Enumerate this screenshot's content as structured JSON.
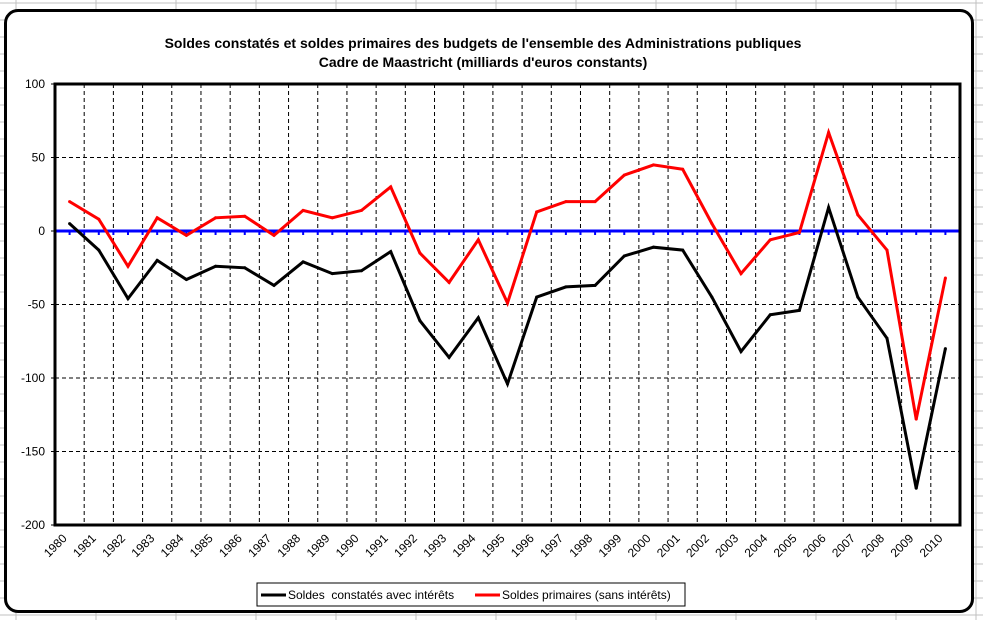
{
  "chart_data": {
    "type": "line",
    "title": "Soldes constatés et soldes primaires des budgets de l'ensemble des Administrations publiques",
    "subtitle": "Cadre de Maastricht (milliards d'euros constants)",
    "xlabel": "",
    "ylabel": "",
    "ylim": [
      -200,
      100
    ],
    "yticks": [
      100,
      50,
      0,
      -50,
      -100,
      -150,
      -200
    ],
    "grid": true,
    "legend_position": "bottom",
    "categories": [
      "1980",
      "1981",
      "1982",
      "1983",
      "1984",
      "1985",
      "1986",
      "1987",
      "1988",
      "1989",
      "1990",
      "1991",
      "1992",
      "1993",
      "1994",
      "1995",
      "1996",
      "1997",
      "1998",
      "1999",
      "2000",
      "2001",
      "2002",
      "2003",
      "2004",
      "2005",
      "2006",
      "2007",
      "2008",
      "2009",
      "2010"
    ],
    "series": [
      {
        "name": "Soldes  constatés avec intérêts",
        "color": "#000000",
        "values": [
          5,
          -13,
          -46,
          -20,
          -33,
          -24,
          -25,
          -37,
          -21,
          -29,
          -27,
          -14,
          -61,
          -86,
          -59,
          -104,
          -45,
          -38,
          -37,
          -17,
          -11,
          -13,
          -45,
          -82,
          -57,
          -54,
          16,
          -45,
          -73,
          -175,
          -80
        ]
      },
      {
        "name": "Soldes primaires (sans intérêts)",
        "color": "#ff0000",
        "values": [
          20,
          8,
          -24,
          9,
          -3,
          9,
          10,
          -3,
          14,
          9,
          14,
          30,
          -15,
          -35,
          -6,
          -49,
          13,
          20,
          20,
          38,
          45,
          42,
          5,
          -29,
          -6,
          -1,
          67,
          11,
          -13,
          -128,
          -32
        ]
      }
    ],
    "reference_line": {
      "value": 0,
      "color": "#0000ff"
    }
  }
}
